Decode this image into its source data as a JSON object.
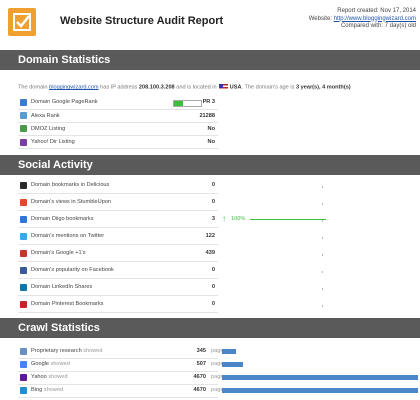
{
  "header": {
    "title": "Website Structure Audit Report",
    "report_created": "Report created: Nov 17, 2014",
    "website_label": "Website:",
    "website_url": "http://www.bloggingwizard.com",
    "compared_with": "Compared with: 7 day(s) old"
  },
  "domain_statistics": {
    "title": "Domain Statistics",
    "summary": {
      "intro": "The domain",
      "domain": "bloggingwizard.com",
      "ip_text": "has IP address",
      "ip": "208.100.3.208",
      "location_text": "and is located in",
      "country": "USA",
      "age_text": ". The domain's age is",
      "age": "3 year(s), 4 month(s)"
    },
    "rows": [
      {
        "label": "Domain Google PageRank",
        "value": "PR 3"
      },
      {
        "label": "Alexa Rank",
        "value": "21288"
      },
      {
        "label": "DMOZ Listing",
        "value": "No"
      },
      {
        "label": "Yahoo! Dir Listing",
        "value": "No"
      }
    ]
  },
  "social_activity": {
    "title": "Social Activity",
    "rows": [
      {
        "label": "Domain bookmarks in Delicious",
        "value": "0"
      },
      {
        "label": "Domain's views in StumbleUpon",
        "value": "0"
      },
      {
        "label": "Domain Diigo bookmarks",
        "value": "3",
        "change": "100%"
      },
      {
        "label": "Domain's mentions on Twitter",
        "value": "122"
      },
      {
        "label": "Domain's Google +1's",
        "value": "439"
      },
      {
        "label": "Domain's popularity on Facebook",
        "value": "0"
      },
      {
        "label": "Domain LinkedIn Shares",
        "value": "0"
      },
      {
        "label": "Domain Pinterest Bookmarks",
        "value": "0"
      }
    ]
  },
  "crawl_statistics": {
    "title": "Crawl Statistics",
    "unit": "pages",
    "rows": [
      {
        "source": "Proprietary research",
        "verb": "showed",
        "value": 345
      },
      {
        "source": "Google",
        "verb": "showed",
        "value": 507
      },
      {
        "source": "Yahoo",
        "verb": "showed",
        "value": 4670
      },
      {
        "source": "Bing",
        "verb": "showed",
        "value": 4670
      }
    ]
  }
}
